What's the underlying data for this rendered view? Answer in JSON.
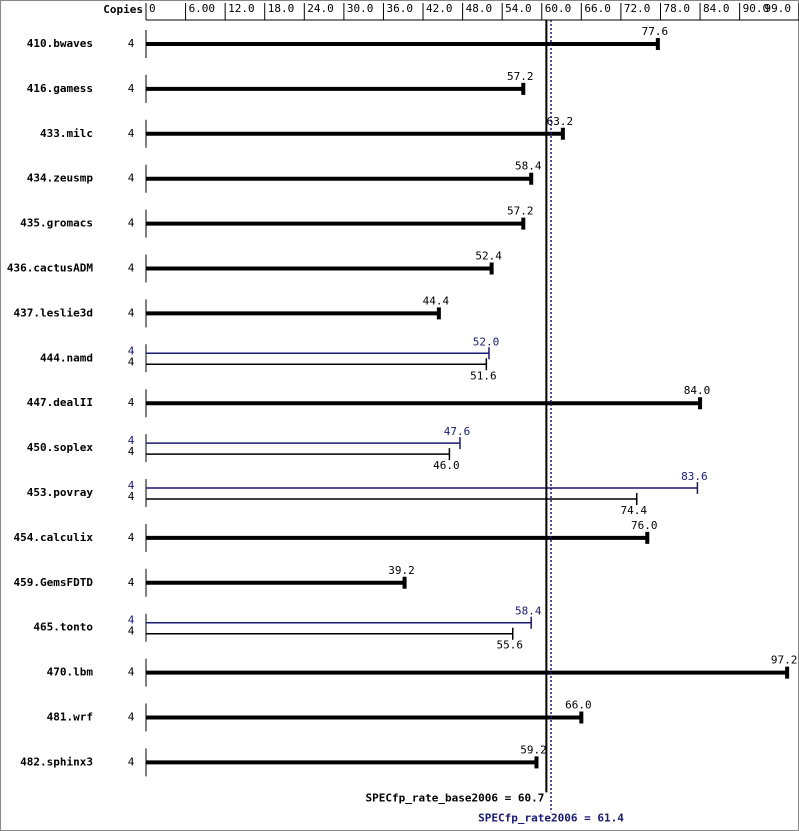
{
  "chart_data": {
    "type": "bar",
    "copies_label": "Copies",
    "categories": [
      "410.bwaves",
      "416.gamess",
      "433.milc",
      "434.zeusmp",
      "435.gromacs",
      "436.cactusADM",
      "437.leslie3d",
      "444.namd",
      "447.dealII",
      "450.soplex",
      "453.povray",
      "454.calculix",
      "459.GemsFDTD",
      "465.tonto",
      "470.lbm",
      "481.wrf",
      "482.sphinx3"
    ],
    "series": [
      {
        "color": "#000000",
        "copies": [
          4,
          4,
          4,
          4,
          4,
          4,
          4,
          4,
          4,
          4,
          4,
          4,
          4,
          4,
          4,
          4,
          4
        ],
        "values": [
          77.6,
          57.2,
          63.2,
          58.4,
          57.2,
          52.4,
          44.4,
          51.6,
          84.0,
          46.0,
          74.4,
          76.0,
          39.2,
          55.6,
          97.2,
          66.0,
          59.2
        ],
        "value_labels": [
          "77.6",
          "57.2",
          "63.2",
          "58.4",
          "57.2",
          "52.4",
          "44.4",
          "51.6",
          "84.0",
          "46.0",
          "74.4",
          "76.0",
          "39.2",
          "55.6",
          "97.2",
          "66.0",
          "59.2"
        ]
      },
      {
        "color": "#191970",
        "copies": [
          null,
          null,
          null,
          null,
          null,
          null,
          null,
          4,
          null,
          4,
          4,
          null,
          null,
          4,
          null,
          null,
          null
        ],
        "values": [
          null,
          null,
          null,
          null,
          null,
          null,
          null,
          52.0,
          null,
          47.6,
          83.6,
          null,
          null,
          58.4,
          null,
          null,
          null
        ],
        "value_labels": [
          null,
          null,
          null,
          null,
          null,
          null,
          null,
          "52.0",
          null,
          "47.6",
          "83.6",
          null,
          null,
          "58.4",
          null,
          null,
          null
        ]
      }
    ],
    "xlim": [
      0,
      99
    ],
    "xticks": [
      0,
      {
        "value": 6,
        "label": "6.00"
      },
      {
        "value": 12,
        "label": "12.0"
      },
      {
        "value": 18,
        "label": "18.0"
      },
      {
        "value": 24,
        "label": "24.0"
      },
      {
        "value": 30,
        "label": "30.0"
      },
      {
        "value": 36,
        "label": "36.0"
      },
      {
        "value": 42,
        "label": "42.0"
      },
      {
        "value": 48,
        "label": "48.0"
      },
      {
        "value": 54,
        "label": "54.0"
      },
      {
        "value": 60,
        "label": "60.0"
      },
      {
        "value": 66,
        "label": "66.0"
      },
      {
        "value": 72,
        "label": "72.0"
      },
      {
        "value": 78,
        "label": "78.0"
      },
      {
        "value": 84,
        "label": "84.0"
      },
      {
        "value": 90,
        "label": "90.0"
      },
      {
        "value": 99,
        "label": "99.0"
      }
    ],
    "reference_lines": [
      {
        "value": 60.7,
        "label": "SPECfp_rate_base2006 = 60.7",
        "color": "#000000",
        "dashed": false
      },
      {
        "value": 61.4,
        "label": "SPECfp_rate2006 = 61.4",
        "color": "#191970",
        "dashed": true
      }
    ]
  }
}
